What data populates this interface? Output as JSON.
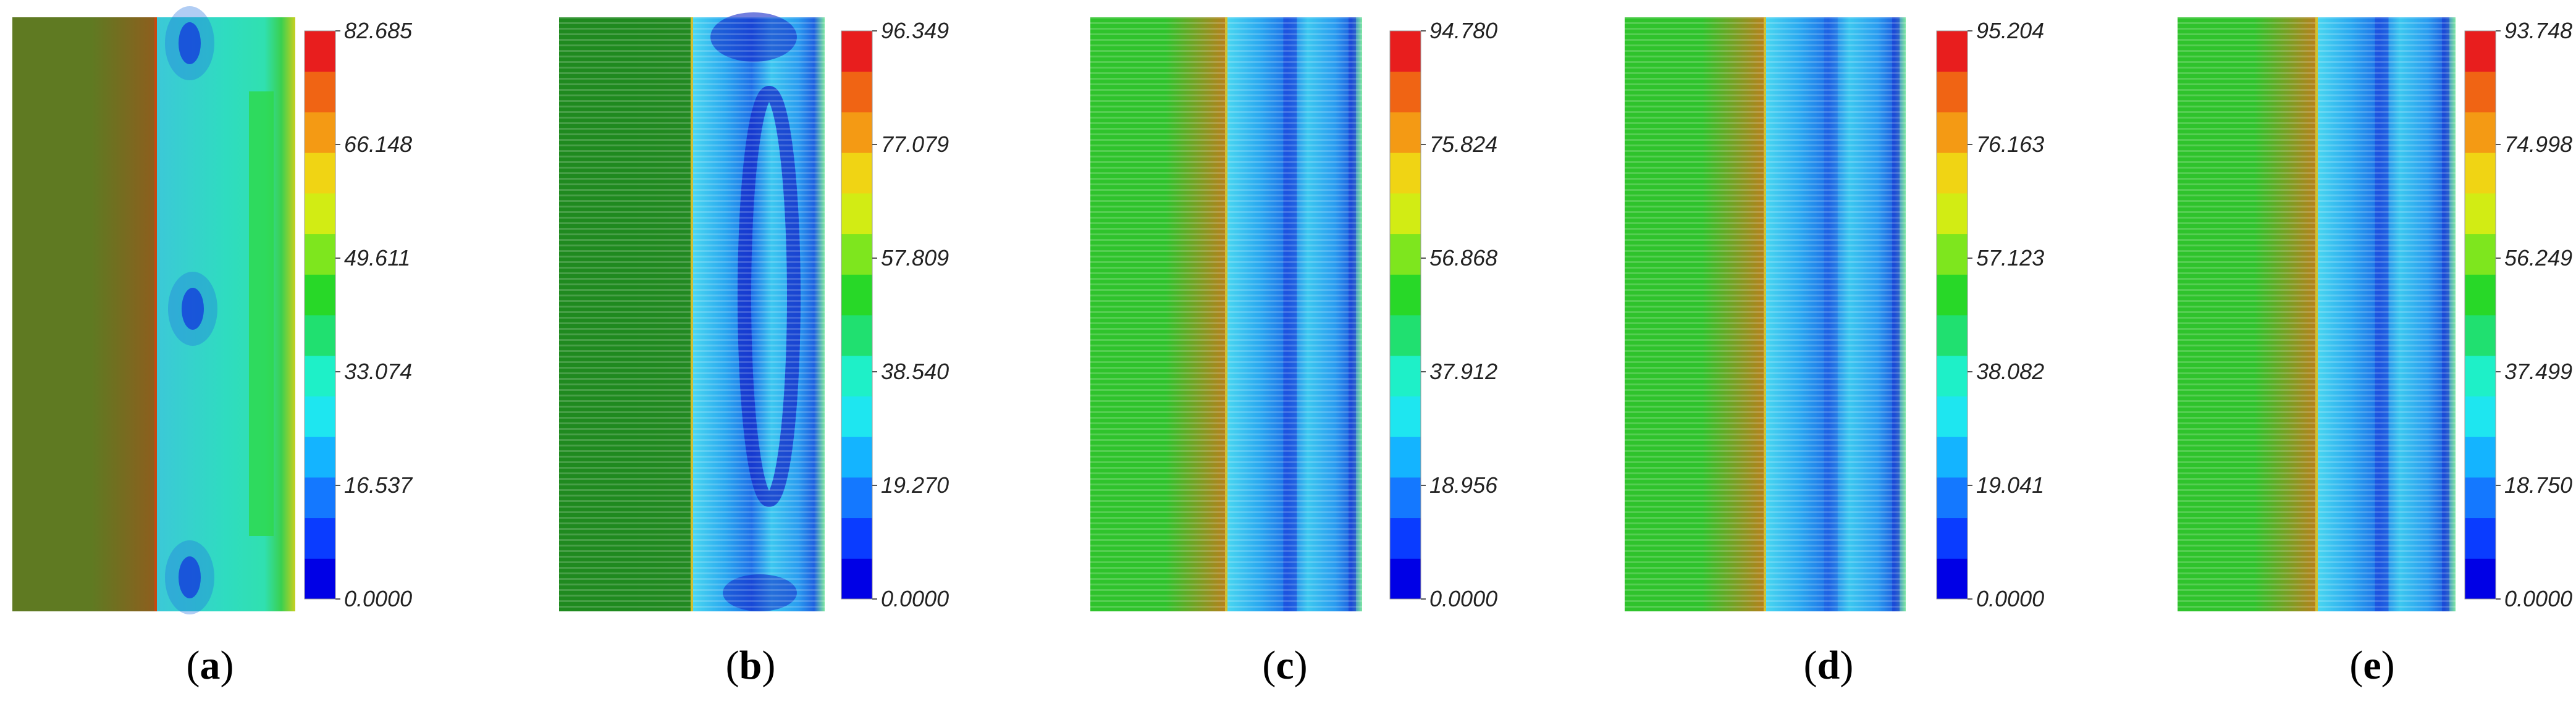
{
  "panels": [
    {
      "id": "a",
      "label": "a",
      "colorbar_ticks": [
        "82.685",
        "66.148",
        "49.611",
        "33.074",
        "16.537",
        "0.0000"
      ],
      "left_color": "#5f7a22",
      "right_color": "#8e5e1e",
      "plot_style": "smooth"
    },
    {
      "id": "b",
      "label": "b",
      "colorbar_ticks": [
        "96.349",
        "77.079",
        "57.809",
        "38.540",
        "19.270",
        "0.0000"
      ],
      "left_color": "#1f8a1f",
      "right_color": "#238a22",
      "plot_style": "striped"
    },
    {
      "id": "c",
      "label": "c",
      "colorbar_ticks": [
        "94.780",
        "75.824",
        "56.868",
        "37.912",
        "18.956",
        "0.0000"
      ],
      "left_color": "#2fc32c",
      "right_color": "#b8801c",
      "plot_style": "striped"
    },
    {
      "id": "d",
      "label": "d",
      "colorbar_ticks": [
        "95.204",
        "76.163",
        "57.123",
        "38.082",
        "19.041",
        "0.0000"
      ],
      "left_color": "#2fc32c",
      "right_color": "#b8801c",
      "plot_style": "striped"
    },
    {
      "id": "e",
      "label": "e",
      "colorbar_ticks": [
        "93.748",
        "74.998",
        "56.249",
        "37.499",
        "18.750",
        "0.0000"
      ],
      "left_color": "#2fc32c",
      "right_color": "#b8801c",
      "plot_style": "striped"
    }
  ],
  "colormap": [
    "#0000e6",
    "#0a3cff",
    "#1478ff",
    "#14b4ff",
    "#1ee6f0",
    "#1ef0c8",
    "#20e070",
    "#28d828",
    "#7ee61e",
    "#d2ec14",
    "#f0d414",
    "#f49a14",
    "#f06414",
    "#e81e1e"
  ]
}
